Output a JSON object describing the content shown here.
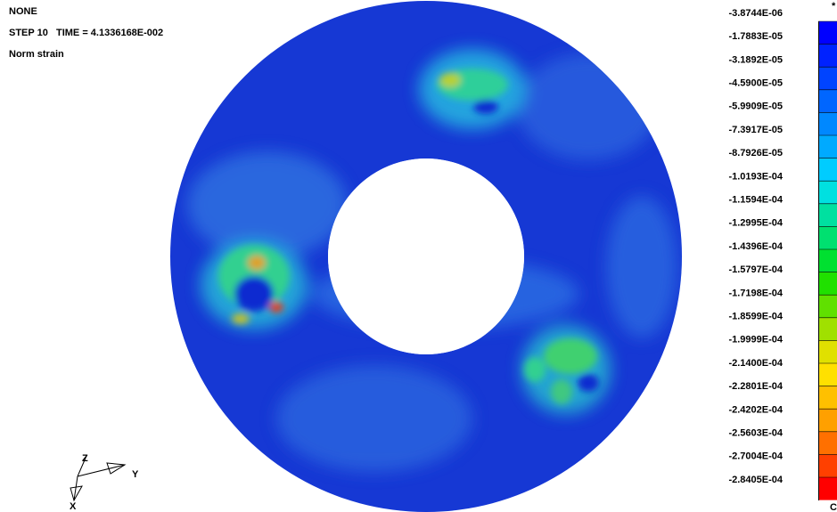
{
  "header": {
    "title": "NONE",
    "step": "STEP 10   TIME = 4.1336168E-002",
    "variable": "Norm strain"
  },
  "legend": {
    "labels": [
      "-3.8744E-06",
      "-1.7883E-05",
      "-3.1892E-05",
      "-4.5900E-05",
      "-5.9909E-05",
      "-7.3917E-05",
      "-8.7926E-05",
      "-1.0193E-04",
      "-1.1594E-04",
      "-1.2995E-04",
      "-1.4396E-04",
      "-1.5797E-04",
      "-1.7198E-04",
      "-1.8599E-04",
      "-1.9999E-04",
      "-2.1400E-04",
      "-2.2801E-04",
      "-2.4202E-04",
      "-2.5603E-04",
      "-2.7004E-04",
      "-2.8405E-04"
    ],
    "top_mark": "*",
    "bottom_mark": "C"
  },
  "triad": {
    "z": "Z",
    "y": "Y",
    "x": "X"
  }
}
